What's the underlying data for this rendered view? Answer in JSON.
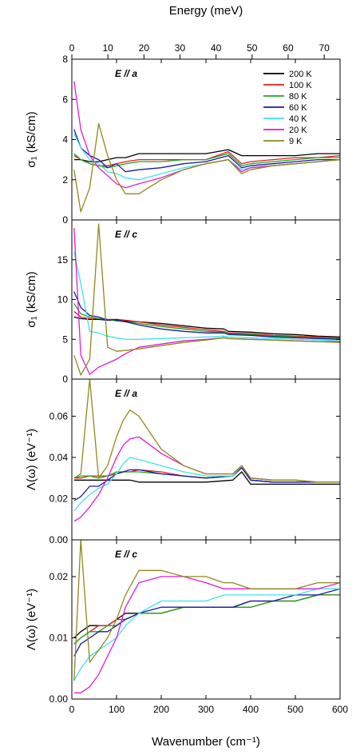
{
  "top_axis": {
    "label": "Energy (meV)",
    "ticks": [
      "0",
      "10",
      "20",
      "30",
      "40",
      "50",
      "60",
      "70"
    ],
    "range_meV": [
      0,
      74.4
    ]
  },
  "x_axis": {
    "label": "Wavenumber (cm⁻¹)",
    "ticks": [
      "0",
      "100",
      "200",
      "300",
      "400",
      "500",
      "600"
    ],
    "range": [
      0,
      600
    ]
  },
  "legend": {
    "placement": "top-right of first panel",
    "entries": [
      {
        "name": "200 K",
        "color": "#000000"
      },
      {
        "name": "100 K",
        "color": "#e8191b"
      },
      {
        "name": "80 K",
        "color": "#1ea71e"
      },
      {
        "name": "60 K",
        "color": "#1a1aa6"
      },
      {
        "name": "40 K",
        "color": "#3fe3ea"
      },
      {
        "name": "20 K",
        "color": "#e21ad8"
      },
      {
        "name": "9 K",
        "color": "#8e8a1a"
      }
    ]
  },
  "chart_data": [
    {
      "type": "line",
      "panel_label": "E // a",
      "ylabel": "σ₁ (kS/cm)",
      "ylim": [
        0,
        8
      ],
      "yticks": [
        "0",
        "2",
        "4",
        "6",
        "8"
      ],
      "x": [
        5,
        20,
        40,
        60,
        80,
        100,
        120,
        150,
        200,
        250,
        300,
        350,
        380,
        400,
        450,
        500,
        550,
        600
      ],
      "series": [
        {
          "name": "200 K",
          "values": [
            3.0,
            3.0,
            2.9,
            2.9,
            3.0,
            3.1,
            3.1,
            3.3,
            3.3,
            3.3,
            3.3,
            3.5,
            3.2,
            3.2,
            3.2,
            3.2,
            3.3,
            3.3
          ]
        },
        {
          "name": "100 K",
          "values": [
            3.2,
            3.0,
            2.8,
            2.7,
            2.7,
            2.8,
            2.9,
            3.0,
            3.0,
            3.0,
            3.0,
            3.4,
            2.8,
            2.9,
            3.0,
            3.1,
            3.1,
            3.2
          ]
        },
        {
          "name": "80 K",
          "values": [
            3.3,
            3.0,
            2.8,
            2.7,
            2.6,
            2.7,
            2.8,
            2.9,
            2.9,
            3.0,
            3.0,
            3.3,
            2.7,
            2.8,
            2.9,
            3.0,
            3.1,
            3.1
          ]
        },
        {
          "name": "60 K",
          "values": [
            4.5,
            3.6,
            3.2,
            3.0,
            2.6,
            2.8,
            2.4,
            2.5,
            2.6,
            2.8,
            2.9,
            3.2,
            2.6,
            2.7,
            2.8,
            2.9,
            3.0,
            3.0
          ]
        },
        {
          "name": "40 K",
          "values": [
            4.3,
            3.6,
            3.0,
            2.8,
            2.4,
            2.3,
            2.1,
            2.0,
            2.3,
            2.6,
            2.8,
            3.0,
            2.5,
            2.6,
            2.7,
            2.8,
            2.9,
            3.0
          ]
        },
        {
          "name": "20 K",
          "values": [
            6.9,
            4.5,
            3.2,
            2.6,
            2.2,
            1.8,
            1.6,
            1.8,
            2.1,
            2.5,
            2.8,
            3.0,
            2.4,
            2.6,
            2.7,
            2.8,
            2.9,
            3.0
          ]
        },
        {
          "name": "9 K",
          "values": [
            2.5,
            0.4,
            1.6,
            4.8,
            3.2,
            2.0,
            1.3,
            1.3,
            2.0,
            2.5,
            2.8,
            3.0,
            2.3,
            2.5,
            2.7,
            2.8,
            2.9,
            3.0
          ]
        }
      ]
    },
    {
      "type": "line",
      "panel_label": "E // c",
      "ylabel": "σ₁ (kS/cm)",
      "ylim": [
        0,
        20
      ],
      "yticks": [
        "0",
        "5",
        "10",
        "15"
      ],
      "x": [
        5,
        20,
        40,
        60,
        80,
        100,
        120,
        150,
        200,
        250,
        300,
        340,
        350,
        400,
        450,
        500,
        550,
        600
      ],
      "series": [
        {
          "name": "200 K",
          "values": [
            7.8,
            7.6,
            7.5,
            7.5,
            7.4,
            7.4,
            7.3,
            7.2,
            7.0,
            6.7,
            6.4,
            6.3,
            6.0,
            5.9,
            5.7,
            5.6,
            5.4,
            5.3
          ]
        },
        {
          "name": "100 K",
          "values": [
            8.5,
            7.8,
            7.6,
            7.6,
            7.5,
            7.5,
            7.4,
            7.2,
            6.8,
            6.5,
            6.2,
            6.0,
            5.8,
            5.7,
            5.5,
            5.4,
            5.3,
            5.2
          ]
        },
        {
          "name": "80 K",
          "values": [
            9.5,
            8.2,
            7.8,
            7.6,
            7.5,
            7.3,
            7.2,
            7.0,
            6.6,
            6.3,
            6.0,
            5.9,
            5.7,
            5.6,
            5.4,
            5.3,
            5.2,
            5.1
          ]
        },
        {
          "name": "60 K",
          "values": [
            11.0,
            9.0,
            8.0,
            7.8,
            7.4,
            7.5,
            7.2,
            6.8,
            6.3,
            6.0,
            5.8,
            5.8,
            5.6,
            5.5,
            5.3,
            5.2,
            5.1,
            5.0
          ]
        },
        {
          "name": "40 K",
          "values": [
            16.0,
            12.0,
            6.0,
            5.8,
            5.4,
            5.2,
            5.0,
            5.0,
            5.1,
            5.2,
            5.3,
            5.4,
            5.3,
            5.2,
            5.1,
            5.0,
            4.9,
            4.8
          ]
        },
        {
          "name": "20 K",
          "values": [
            19.0,
            3.0,
            0.6,
            1.5,
            2.0,
            2.5,
            3.2,
            4.0,
            4.4,
            4.8,
            5.0,
            5.2,
            5.1,
            5.0,
            4.9,
            4.8,
            4.7,
            4.7
          ]
        },
        {
          "name": "9 K",
          "values": [
            3.0,
            0.5,
            2.5,
            19.5,
            4.0,
            3.5,
            3.6,
            3.8,
            4.2,
            4.6,
            4.9,
            5.2,
            5.1,
            5.0,
            4.9,
            4.8,
            4.7,
            4.6
          ]
        }
      ]
    },
    {
      "type": "line",
      "panel_label": "E // a",
      "ylabel": "Λ(ω) (eV⁻¹)",
      "ylim": [
        0,
        0.078
      ],
      "yticks": [
        "0.00",
        "0.02",
        "0.04",
        "0.06"
      ],
      "x": [
        5,
        20,
        40,
        60,
        80,
        100,
        115,
        130,
        150,
        200,
        250,
        300,
        360,
        380,
        400,
        450,
        500,
        550,
        600
      ],
      "series": [
        {
          "name": "200 K",
          "values": [
            0.029,
            0.029,
            0.029,
            0.029,
            0.029,
            0.029,
            0.029,
            0.029,
            0.028,
            0.028,
            0.028,
            0.028,
            0.029,
            0.033,
            0.027,
            0.027,
            0.027,
            0.027,
            0.027
          ]
        },
        {
          "name": "100 K",
          "values": [
            0.03,
            0.03,
            0.031,
            0.031,
            0.031,
            0.032,
            0.033,
            0.033,
            0.034,
            0.033,
            0.031,
            0.03,
            0.031,
            0.035,
            0.029,
            0.028,
            0.028,
            0.028,
            0.028
          ]
        },
        {
          "name": "80 K",
          "values": [
            0.03,
            0.031,
            0.031,
            0.03,
            0.031,
            0.033,
            0.033,
            0.033,
            0.033,
            0.032,
            0.031,
            0.03,
            0.031,
            0.035,
            0.029,
            0.028,
            0.028,
            0.028,
            0.028
          ]
        },
        {
          "name": "60 K",
          "values": [
            0.019,
            0.021,
            0.026,
            0.026,
            0.029,
            0.032,
            0.033,
            0.034,
            0.034,
            0.032,
            0.031,
            0.03,
            0.031,
            0.035,
            0.029,
            0.028,
            0.028,
            0.028,
            0.028
          ]
        },
        {
          "name": "40 K",
          "values": [
            0.014,
            0.018,
            0.022,
            0.025,
            0.027,
            0.032,
            0.037,
            0.04,
            0.039,
            0.036,
            0.033,
            0.031,
            0.031,
            0.036,
            0.03,
            0.029,
            0.029,
            0.028,
            0.028
          ]
        },
        {
          "name": "20 K",
          "values": [
            0.009,
            0.011,
            0.016,
            0.022,
            0.03,
            0.04,
            0.046,
            0.049,
            0.05,
            0.042,
            0.036,
            0.032,
            0.032,
            0.036,
            0.03,
            0.029,
            0.029,
            0.028,
            0.028
          ]
        },
        {
          "name": "9 K",
          "values": [
            0.03,
            0.032,
            0.078,
            0.03,
            0.036,
            0.05,
            0.058,
            0.063,
            0.06,
            0.044,
            0.036,
            0.032,
            0.032,
            0.036,
            0.03,
            0.029,
            0.029,
            0.028,
            0.028
          ]
        }
      ]
    },
    {
      "type": "line",
      "panel_label": "E // c",
      "ylabel": "Λ(ω) (eV⁻¹)",
      "ylim": [
        0,
        0.026
      ],
      "yticks": [
        "0.00",
        "0.01",
        "0.02"
      ],
      "x": [
        5,
        20,
        40,
        60,
        80,
        100,
        120,
        150,
        200,
        250,
        300,
        340,
        360,
        400,
        450,
        500,
        550,
        600
      ],
      "series": [
        {
          "name": "200 K",
          "values": [
            0.01,
            0.011,
            0.012,
            0.012,
            0.012,
            0.013,
            0.014,
            0.014,
            0.014,
            0.015,
            0.015,
            0.015,
            0.015,
            0.016,
            0.016,
            0.016,
            0.017,
            0.017
          ]
        },
        {
          "name": "100 K",
          "values": [
            0.009,
            0.01,
            0.011,
            0.012,
            0.012,
            0.013,
            0.013,
            0.014,
            0.014,
            0.015,
            0.015,
            0.015,
            0.015,
            0.015,
            0.016,
            0.016,
            0.017,
            0.017
          ]
        },
        {
          "name": "80 K",
          "values": [
            0.009,
            0.01,
            0.011,
            0.011,
            0.012,
            0.012,
            0.013,
            0.014,
            0.014,
            0.015,
            0.015,
            0.015,
            0.015,
            0.015,
            0.016,
            0.016,
            0.017,
            0.017
          ]
        },
        {
          "name": "60 K",
          "values": [
            0.007,
            0.009,
            0.01,
            0.011,
            0.011,
            0.012,
            0.013,
            0.014,
            0.015,
            0.015,
            0.015,
            0.015,
            0.015,
            0.016,
            0.016,
            0.017,
            0.017,
            0.018
          ]
        },
        {
          "name": "40 K",
          "values": [
            0.003,
            0.005,
            0.007,
            0.008,
            0.009,
            0.01,
            0.012,
            0.014,
            0.016,
            0.016,
            0.016,
            0.017,
            0.017,
            0.017,
            0.017,
            0.017,
            0.018,
            0.018
          ]
        },
        {
          "name": "20 K",
          "values": [
            0.001,
            0.001,
            0.002,
            0.004,
            0.007,
            0.01,
            0.015,
            0.019,
            0.02,
            0.02,
            0.019,
            0.018,
            0.018,
            0.018,
            0.018,
            0.018,
            0.018,
            0.019
          ]
        },
        {
          "name": "9 K",
          "values": [
            0.003,
            0.026,
            0.006,
            0.008,
            0.01,
            0.013,
            0.017,
            0.021,
            0.021,
            0.02,
            0.02,
            0.019,
            0.019,
            0.018,
            0.018,
            0.018,
            0.019,
            0.019
          ]
        }
      ]
    }
  ]
}
